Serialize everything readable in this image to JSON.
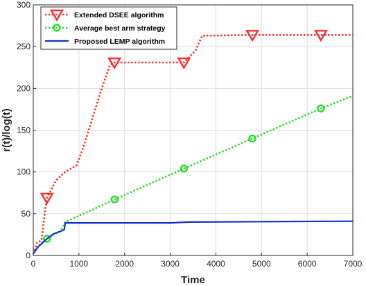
{
  "chart_data": {
    "type": "line",
    "xlabel": "Time",
    "ylabel": "r(t)/log(t)",
    "xlim": [
      0,
      7000
    ],
    "ylim": [
      0,
      300
    ],
    "xticks": [
      0,
      1000,
      2000,
      3000,
      4000,
      5000,
      6000,
      7000
    ],
    "yticks": [
      0,
      50,
      100,
      150,
      200,
      250,
      300
    ],
    "grid": true,
    "legend_position": "top-left",
    "series": [
      {
        "name": "Extended DSEE algorithm",
        "color": "#ff2a2a",
        "line_style": "dotted",
        "marker": "triangle-down",
        "points": [
          [
            0,
            2
          ],
          [
            80,
            15
          ],
          [
            180,
            18
          ],
          [
            260,
            55
          ],
          [
            300,
            69
          ],
          [
            330,
            72
          ],
          [
            500,
            90
          ],
          [
            700,
            100
          ],
          [
            950,
            108
          ],
          [
            1100,
            130
          ],
          [
            1300,
            165
          ],
          [
            1500,
            200
          ],
          [
            1680,
            228
          ],
          [
            1780,
            231
          ],
          [
            2500,
            231
          ],
          [
            3200,
            231
          ],
          [
            3300,
            231
          ],
          [
            3550,
            245
          ],
          [
            3700,
            263
          ],
          [
            4800,
            264
          ],
          [
            6300,
            264
          ],
          [
            7000,
            264
          ]
        ],
        "marker_points": [
          [
            300,
            69
          ],
          [
            1780,
            231
          ],
          [
            3300,
            231
          ],
          [
            4800,
            264
          ],
          [
            6300,
            264
          ]
        ]
      },
      {
        "name": "Average best arm strategy",
        "color": "#22e022",
        "line_style": "dotted",
        "marker": "circle",
        "points": [
          [
            0,
            2
          ],
          [
            150,
            14
          ],
          [
            300,
            20
          ],
          [
            450,
            25
          ],
          [
            600,
            29
          ],
          [
            700,
            40
          ],
          [
            1780,
            67
          ],
          [
            3300,
            104
          ],
          [
            4800,
            140
          ],
          [
            6300,
            176
          ],
          [
            7000,
            191
          ]
        ],
        "marker_points": [
          [
            300,
            20
          ],
          [
            1780,
            67
          ],
          [
            3300,
            104
          ],
          [
            4800,
            140
          ],
          [
            6300,
            176
          ]
        ]
      },
      {
        "name": "Proposed LEMP algorithm",
        "color": "#1030d0",
        "line_style": "solid",
        "marker": "none",
        "points": [
          [
            0,
            2
          ],
          [
            100,
            10
          ],
          [
            300,
            20
          ],
          [
            450,
            26
          ],
          [
            600,
            29
          ],
          [
            680,
            31
          ],
          [
            700,
            39
          ],
          [
            1500,
            39
          ],
          [
            3000,
            39
          ],
          [
            3400,
            40
          ],
          [
            5000,
            40.5
          ],
          [
            7000,
            41
          ]
        ],
        "marker_points": []
      }
    ]
  }
}
